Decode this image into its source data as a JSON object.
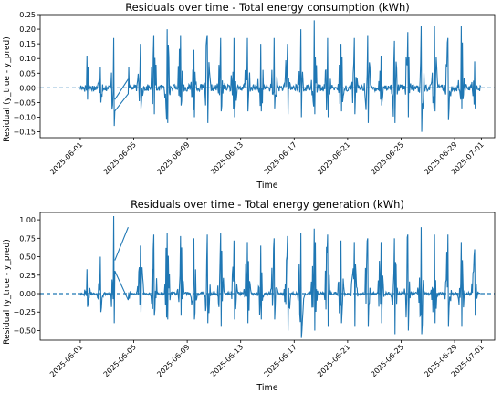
{
  "figure": {
    "series_color": "#1f77b4",
    "baseline_color": "#1f77b4"
  },
  "chart_data": [
    {
      "type": "line",
      "title": "Residuals over time - Total energy consumption (kWh)",
      "xlabel": "Time",
      "ylabel": "Residual (y_true - y_pred)",
      "x_range": [
        "2025-05-29",
        "2025-07-02"
      ],
      "data_range": [
        "2025-06-01",
        "2025-06-30"
      ],
      "ylim": [
        -0.17,
        0.25
      ],
      "yticks": [
        -0.15,
        -0.1,
        -0.05,
        0.0,
        0.05,
        0.1,
        0.15,
        0.2,
        0.25
      ],
      "ytick_labels": [
        "−0.15",
        "−0.10",
        "−0.05",
        "0.00",
        "0.05",
        "0.10",
        "0.15",
        "0.20",
        "0.25"
      ],
      "xticks": [
        "2025-06-01",
        "2025-06-05",
        "2025-06-09",
        "2025-06-13",
        "2025-06-17",
        "2025-06-21",
        "2025-06-25",
        "2025-06-29",
        "2025-07-01"
      ],
      "baseline": 0.0,
      "grid": false,
      "daily_peaks": {
        "days": [
          "2025-06-01",
          "2025-06-02",
          "2025-06-03",
          "2025-06-04",
          "2025-06-05",
          "2025-06-06",
          "2025-06-07",
          "2025-06-08",
          "2025-06-09",
          "2025-06-10",
          "2025-06-11",
          "2025-06-12",
          "2025-06-13",
          "2025-06-14",
          "2025-06-15",
          "2025-06-16",
          "2025-06-17",
          "2025-06-18",
          "2025-06-19",
          "2025-06-20",
          "2025-06-21",
          "2025-06-22",
          "2025-06-23",
          "2025-06-24",
          "2025-06-25",
          "2025-06-26",
          "2025-06-27",
          "2025-06-28",
          "2025-06-29",
          "2025-06-30"
        ],
        "max": [
          0.11,
          0.07,
          0.17,
          0.11,
          0.15,
          0.18,
          0.2,
          0.18,
          0.13,
          0.18,
          0.17,
          0.17,
          0.17,
          0.15,
          0.17,
          0.15,
          0.2,
          0.23,
          0.17,
          0.15,
          0.17,
          0.18,
          0.11,
          0.16,
          0.19,
          0.21,
          0.21,
          0.17,
          0.21,
          0.09
        ],
        "min": [
          -0.04,
          -0.05,
          -0.13,
          -0.03,
          -0.07,
          -0.09,
          -0.12,
          -0.06,
          -0.1,
          -0.12,
          -0.08,
          -0.1,
          -0.08,
          -0.08,
          -0.07,
          -0.09,
          -0.1,
          -0.09,
          -0.1,
          -0.08,
          -0.09,
          -0.12,
          -0.06,
          -0.12,
          -0.1,
          -0.15,
          -0.08,
          -0.11,
          -0.07,
          -0.07
        ]
      },
      "gap_interpolation": {
        "from": [
          "2025-06-03",
          -0.04
        ],
        "to": [
          "2025-06-04",
          0.03
        ]
      }
    },
    {
      "type": "line",
      "title": "Residuals over time - Total energy generation (kWh)",
      "xlabel": "Time",
      "ylabel": "Residual (y_true - y_pred)",
      "x_range": [
        "2025-05-29",
        "2025-07-02"
      ],
      "data_range": [
        "2025-06-01",
        "2025-06-30"
      ],
      "ylim": [
        -0.63,
        1.1
      ],
      "yticks": [
        -0.5,
        -0.25,
        0.0,
        0.25,
        0.5,
        0.75,
        1.0
      ],
      "ytick_labels": [
        "−0.50",
        "−0.25",
        "0.00",
        "0.25",
        "0.50",
        "0.75",
        "1.00"
      ],
      "xticks": [
        "2025-06-01",
        "2025-06-05",
        "2025-06-09",
        "2025-06-13",
        "2025-06-17",
        "2025-06-21",
        "2025-06-25",
        "2025-06-29",
        "2025-07-01"
      ],
      "baseline": 0.0,
      "grid": false,
      "daily_peaks": {
        "days": [
          "2025-06-01",
          "2025-06-02",
          "2025-06-03",
          "2025-06-04",
          "2025-06-05",
          "2025-06-06",
          "2025-06-07",
          "2025-06-08",
          "2025-06-09",
          "2025-06-10",
          "2025-06-11",
          "2025-06-12",
          "2025-06-13",
          "2025-06-14",
          "2025-06-15",
          "2025-06-16",
          "2025-06-17",
          "2025-06-18",
          "2025-06-19",
          "2025-06-20",
          "2025-06-21",
          "2025-06-22",
          "2025-06-23",
          "2025-06-24",
          "2025-06-25",
          "2025-06-26",
          "2025-06-27",
          "2025-06-28",
          "2025-06-29",
          "2025-06-30"
        ],
        "max": [
          0.33,
          0.5,
          1.05,
          0.9,
          0.65,
          0.8,
          0.82,
          0.78,
          0.75,
          0.8,
          0.82,
          0.72,
          0.7,
          0.65,
          0.75,
          0.78,
          0.82,
          0.88,
          0.8,
          0.72,
          0.7,
          0.75,
          0.7,
          0.75,
          0.8,
          0.9,
          0.8,
          0.8,
          0.7,
          0.6
        ],
        "min": [
          -0.18,
          -0.25,
          -0.4,
          -0.2,
          -0.25,
          -0.3,
          -0.35,
          -0.3,
          -0.35,
          -0.4,
          -0.45,
          -0.35,
          -0.4,
          -0.35,
          -0.35,
          -0.5,
          -0.6,
          -0.5,
          -0.45,
          -0.4,
          -0.45,
          -0.45,
          -0.4,
          -0.55,
          -0.5,
          -0.55,
          -0.4,
          -0.45,
          -0.45,
          -0.3
        ]
      },
      "gap_interpolation": {
        "from": [
          "2025-06-03",
          0.45
        ],
        "to": [
          "2025-06-04",
          0.9
        ]
      }
    }
  ]
}
